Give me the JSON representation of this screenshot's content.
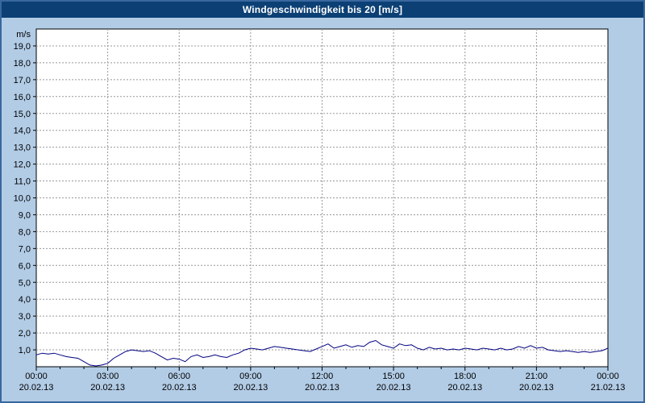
{
  "window": {
    "title": "Windgeschwindigkeit bis 20 [m/s]"
  },
  "colors": {
    "titlebar_bg": "#0c4075",
    "titlebar_text": "#ffffff",
    "frame_bg": "#b2cce6",
    "frame_border": "#39679e",
    "plot_bg": "#ffffff",
    "grid": "#989898",
    "axis": "#000000",
    "line": "#000080",
    "label_text": "#000000"
  },
  "chart_data": {
    "type": "line",
    "title": "Windgeschwindigkeit bis 20 [m/s]",
    "xlabel": "",
    "ylabel": "m/s",
    "ylim": [
      0,
      20
    ],
    "y_tick_step": 1,
    "y_tick_labels": [
      "1,0",
      "2,0",
      "3,0",
      "4,0",
      "5,0",
      "6,0",
      "7,0",
      "8,0",
      "9,0",
      "10,0",
      "11,0",
      "12,0",
      "13,0",
      "14,0",
      "15,0",
      "16,0",
      "17,0",
      "18,0",
      "19,0"
    ],
    "x_range_hours": [
      0,
      24
    ],
    "x_ticks": [
      {
        "time": "00:00",
        "date": "20.02.13"
      },
      {
        "time": "03:00",
        "date": "20.02.13"
      },
      {
        "time": "06:00",
        "date": "20.02.13"
      },
      {
        "time": "09:00",
        "date": "20.02.13"
      },
      {
        "time": "12:00",
        "date": "20.02.13"
      },
      {
        "time": "15:00",
        "date": "20.02.13"
      },
      {
        "time": "18:00",
        "date": "20.02.13"
      },
      {
        "time": "21:00",
        "date": "20.02.13"
      },
      {
        "time": "00:00",
        "date": "21.02.13"
      }
    ],
    "grid": true,
    "legend_position": "none",
    "series": [
      {
        "name": "Windgeschwindigkeit",
        "unit": "m/s",
        "x_start_hours": 0,
        "x_step_hours": 0.25,
        "values": [
          0.7,
          0.8,
          0.75,
          0.8,
          0.7,
          0.6,
          0.55,
          0.5,
          0.3,
          0.1,
          0.05,
          0.1,
          0.2,
          0.5,
          0.7,
          0.9,
          1.0,
          0.95,
          0.9,
          0.95,
          0.8,
          0.6,
          0.4,
          0.5,
          0.45,
          0.3,
          0.6,
          0.7,
          0.55,
          0.6,
          0.7,
          0.6,
          0.55,
          0.7,
          0.8,
          1.0,
          1.1,
          1.05,
          1.0,
          1.1,
          1.2,
          1.15,
          1.1,
          1.05,
          1.0,
          0.95,
          0.9,
          1.05,
          1.2,
          1.35,
          1.1,
          1.2,
          1.3,
          1.15,
          1.25,
          1.2,
          1.45,
          1.55,
          1.3,
          1.2,
          1.1,
          1.35,
          1.25,
          1.3,
          1.1,
          1.0,
          1.15,
          1.05,
          1.1,
          1.0,
          1.05,
          1.0,
          1.1,
          1.05,
          1.0,
          1.1,
          1.05,
          1.0,
          1.1,
          1.0,
          1.05,
          1.2,
          1.1,
          1.25,
          1.1,
          1.15,
          1.0,
          0.95,
          0.9,
          0.95,
          0.9,
          0.85,
          0.9,
          0.85,
          0.9,
          0.95,
          1.1
        ]
      }
    ]
  }
}
